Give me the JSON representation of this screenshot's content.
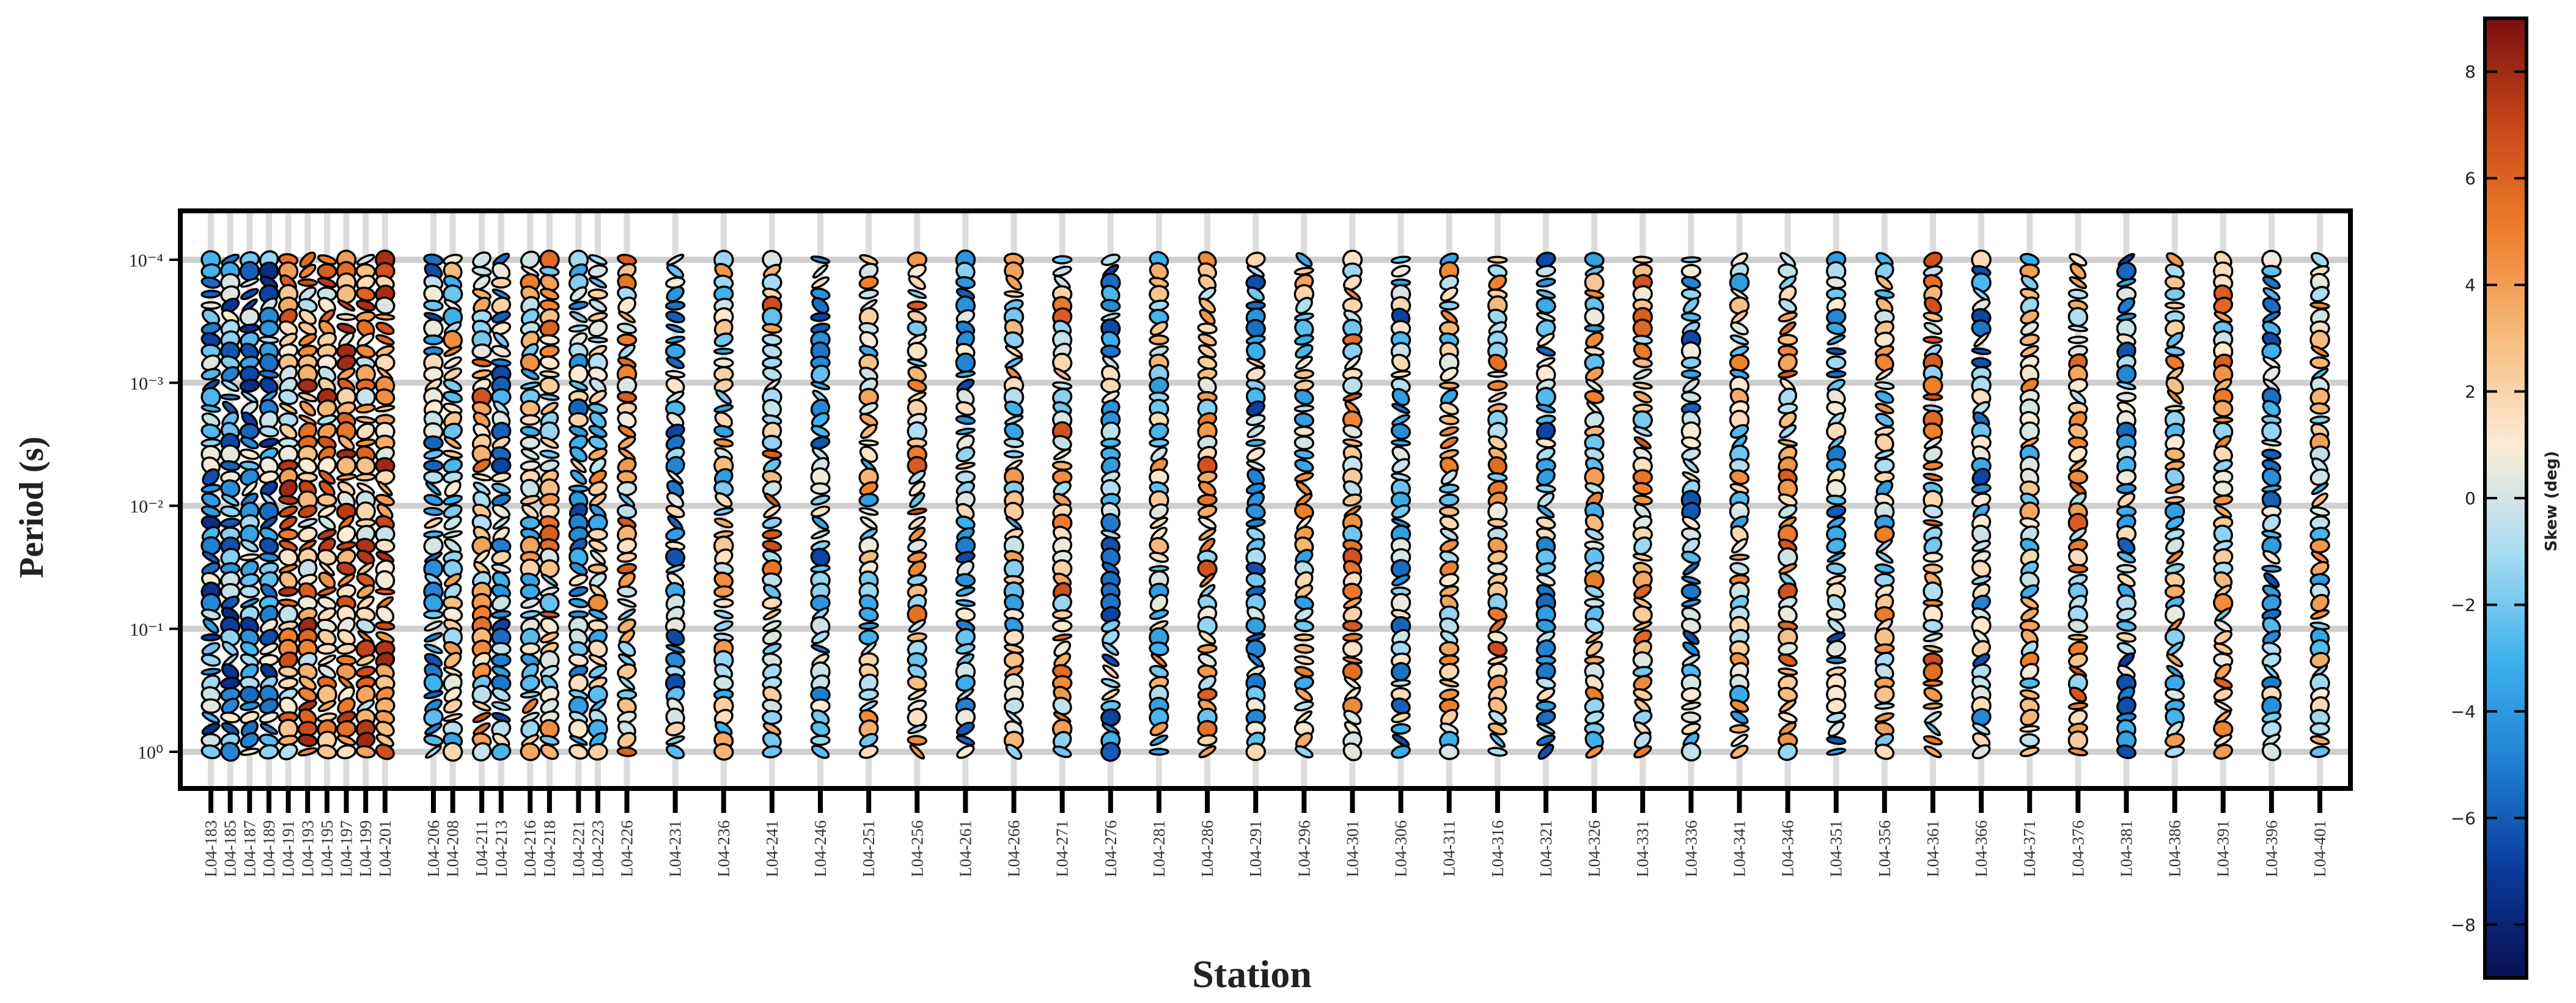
{
  "chart_data": {
    "type": "scatter",
    "title": "",
    "xlabel": "Station",
    "ylabel": "Period (s)",
    "yscale": "log",
    "yaxis_inverted": true,
    "ylim": [
      1,
      0.0001
    ],
    "y_tick_labels": [
      "10⁻⁴",
      "10⁻³",
      "10⁻²",
      "10⁻¹",
      "10⁰"
    ],
    "y_tick_values": [
      0.0001,
      0.001,
      0.01,
      0.1,
      1
    ],
    "grid": true,
    "marker": "circle/ellipse",
    "stations": [
      {
        "label": "L04-183",
        "num": 183
      },
      {
        "label": "L04-185",
        "num": 185
      },
      {
        "label": "L04-187",
        "num": 187
      },
      {
        "label": "L04-189",
        "num": 189
      },
      {
        "label": "L04-191",
        "num": 191
      },
      {
        "label": "L04-193",
        "num": 193
      },
      {
        "label": "L04-195",
        "num": 195
      },
      {
        "label": "L04-197",
        "num": 197
      },
      {
        "label": "L04-199",
        "num": 199
      },
      {
        "label": "L04-201",
        "num": 201
      },
      {
        "label": "L04-206",
        "num": 206
      },
      {
        "label": "L04-208",
        "num": 208
      },
      {
        "label": "L04-211",
        "num": 211
      },
      {
        "label": "L04-213",
        "num": 213
      },
      {
        "label": "L04-216",
        "num": 216
      },
      {
        "label": "L04-218",
        "num": 218
      },
      {
        "label": "L04-221",
        "num": 221
      },
      {
        "label": "L04-223",
        "num": 223
      },
      {
        "label": "L04-226",
        "num": 226
      },
      {
        "label": "L04-231",
        "num": 231
      },
      {
        "label": "L04-236",
        "num": 236
      },
      {
        "label": "L04-241",
        "num": 241
      },
      {
        "label": "L04-246",
        "num": 246
      },
      {
        "label": "L04-251",
        "num": 251
      },
      {
        "label": "L04-256",
        "num": 256
      },
      {
        "label": "L04-261",
        "num": 261
      },
      {
        "label": "L04-266",
        "num": 266
      },
      {
        "label": "L04-271",
        "num": 271
      },
      {
        "label": "L04-276",
        "num": 276
      },
      {
        "label": "L04-281",
        "num": 281
      },
      {
        "label": "L04-286",
        "num": 286
      },
      {
        "label": "L04-291",
        "num": 291
      },
      {
        "label": "L04-296",
        "num": 296
      },
      {
        "label": "L04-301",
        "num": 301
      },
      {
        "label": "L04-306",
        "num": 306
      },
      {
        "label": "L04-311",
        "num": 311
      },
      {
        "label": "L04-316",
        "num": 316
      },
      {
        "label": "L04-321",
        "num": 321
      },
      {
        "label": "L04-326",
        "num": 326
      },
      {
        "label": "L04-331",
        "num": 331
      },
      {
        "label": "L04-336",
        "num": 336
      },
      {
        "label": "L04-341",
        "num": 341
      },
      {
        "label": "L04-346",
        "num": 346
      },
      {
        "label": "L04-351",
        "num": 351
      },
      {
        "label": "L04-356",
        "num": 356
      },
      {
        "label": "L04-361",
        "num": 361
      },
      {
        "label": "L04-366",
        "num": 366
      },
      {
        "label": "L04-371",
        "num": 371
      },
      {
        "label": "L04-376",
        "num": 376
      },
      {
        "label": "L04-381",
        "num": 381
      },
      {
        "label": "L04-386",
        "num": 386
      },
      {
        "label": "L04-391",
        "num": 391
      },
      {
        "label": "L04-396",
        "num": 396
      },
      {
        "label": "L04-401",
        "num": 401
      }
    ],
    "colorbar": {
      "label": "Skew (deg)",
      "min": -9,
      "max": 9,
      "ticks": [
        8,
        6,
        4,
        2,
        0,
        -2,
        -4,
        -6,
        -8
      ],
      "tick_labels": [
        "8",
        "6",
        "4",
        "2",
        "0",
        "−2",
        "−4",
        "−6",
        "−8"
      ],
      "colors": [
        "#0a0f52",
        "#0a3a9a",
        "#1f7fd0",
        "#3fb2ec",
        "#a9dcf2",
        "#fbecd6",
        "#f6bc7e",
        "#ee7f2a",
        "#c8461a",
        "#7a0f0f"
      ]
    }
  }
}
